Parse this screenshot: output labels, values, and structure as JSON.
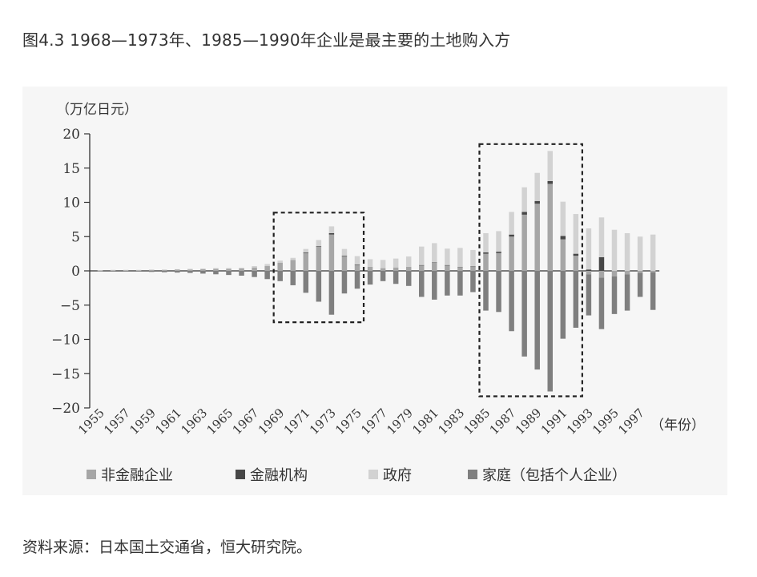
{
  "figure_title": "图4.3 1968—1973年、1985—1990年企业是最主要的土地购入方",
  "source": "资料来源：日本国土交通省，恒大研究院。",
  "chart_data": {
    "type": "bar",
    "stacked": true,
    "ylabel": "（万亿日元）",
    "xlabel": "（年份）",
    "ylim": [
      -20,
      20
    ],
    "yticks": [
      20,
      15,
      10,
      5,
      0,
      -5,
      -10,
      -15,
      -20
    ],
    "ytick_labels": [
      "20",
      "15",
      "10",
      "5",
      "0",
      "−5",
      "−10",
      "−15",
      "−20"
    ],
    "x": [
      1955,
      1956,
      1957,
      1958,
      1959,
      1960,
      1961,
      1962,
      1963,
      1964,
      1965,
      1966,
      1967,
      1968,
      1969,
      1970,
      1971,
      1972,
      1973,
      1974,
      1975,
      1976,
      1977,
      1978,
      1979,
      1980,
      1981,
      1982,
      1983,
      1984,
      1985,
      1986,
      1987,
      1988,
      1989,
      1990,
      1991,
      1992,
      1993,
      1994,
      1995,
      1996,
      1997,
      1998
    ],
    "xtick_labels": [
      "1955",
      "1957",
      "1959",
      "1961",
      "1963",
      "1965",
      "1967",
      "1969",
      "1971",
      "1973",
      "1975",
      "1977",
      "1979",
      "1981",
      "1983",
      "1985",
      "1987",
      "1989",
      "1991",
      "1993",
      "1995",
      "1997"
    ],
    "legend_position": "bottom",
    "series": [
      {
        "name": "非金融企业",
        "color": "#a6a6a6",
        "values": [
          0.05,
          0.1,
          0.1,
          0.1,
          0.15,
          0.15,
          0.2,
          0.2,
          0.25,
          0.3,
          0.3,
          0.35,
          0.5,
          0.7,
          1.2,
          1.6,
          2.6,
          3.5,
          5.3,
          2.1,
          0.9,
          0.6,
          0.4,
          0.5,
          0.6,
          0.8,
          1.2,
          0.8,
          0.5,
          0.6,
          2.5,
          2.6,
          5.0,
          8.2,
          9.8,
          12.7,
          4.6,
          2.2,
          -0.5,
          -1.0,
          -0.8,
          -0.5,
          -0.3,
          -0.2
        ]
      },
      {
        "name": "金融机构",
        "color": "#474747",
        "values": [
          0,
          0,
          0,
          0,
          0,
          0,
          0,
          0,
          0,
          0,
          0,
          0,
          0,
          0,
          0,
          0,
          0.1,
          0.1,
          0.2,
          0.1,
          0.05,
          0,
          0,
          0,
          0,
          0.05,
          0.05,
          0.05,
          0.05,
          0.05,
          0.2,
          0.2,
          0.3,
          0.4,
          0.4,
          0.4,
          0.5,
          0.3,
          0.2,
          2.0,
          0,
          0,
          0,
          0
        ]
      },
      {
        "name": "政府",
        "color": "#d2d2d2",
        "values": [
          0.05,
          0.05,
          0.05,
          0.05,
          0.05,
          0.05,
          0.05,
          0.1,
          0.1,
          0.1,
          0.1,
          0.1,
          0.2,
          0.3,
          0.3,
          0.3,
          0.5,
          0.9,
          1.0,
          1.0,
          1.2,
          1.1,
          1.2,
          1.3,
          1.5,
          2.7,
          2.8,
          2.4,
          2.8,
          2.4,
          2.8,
          3.0,
          3.3,
          3.6,
          4.1,
          4.4,
          5.0,
          5.8,
          6.0,
          5.8,
          6.0,
          5.5,
          5.0,
          5.3
        ]
      },
      {
        "name": "家庭（包括个人企业）",
        "color": "#7f7f7f",
        "values": [
          -0.05,
          -0.1,
          -0.1,
          -0.1,
          -0.15,
          -0.2,
          -0.25,
          -0.3,
          -0.4,
          -0.5,
          -0.6,
          -0.7,
          -0.9,
          -1.2,
          -1.5,
          -2.1,
          -3.2,
          -4.5,
          -6.4,
          -3.3,
          -2.6,
          -2.0,
          -1.5,
          -1.9,
          -2.2,
          -3.8,
          -4.2,
          -3.6,
          -3.6,
          -3.1,
          -5.8,
          -6.0,
          -8.8,
          -12.5,
          -14.4,
          -17.6,
          -9.9,
          -8.3,
          -6.0,
          -7.5,
          -5.5,
          -5.3,
          -3.5,
          -5.5
        ]
      }
    ],
    "annotations": [
      {
        "type": "dashed-box",
        "from": 1969,
        "to": 1975,
        "ymin": -7.5,
        "ymax": 8.5
      },
      {
        "type": "dashed-box",
        "from": 1985,
        "to": 1992,
        "ymin": -18.3,
        "ymax": 18.5
      }
    ]
  }
}
